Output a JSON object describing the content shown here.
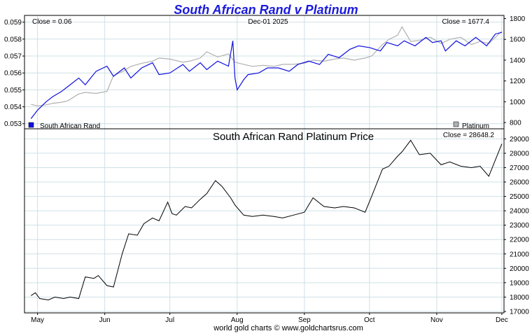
{
  "title": "South African Rand v Platinum",
  "footer": "world gold charts © www.goldchartsrus.com",
  "colors": {
    "title": "#1a1adc",
    "rand": "#1010e0",
    "platinum_top": "#b0b0b0",
    "price_line": "#000000",
    "grid": "#cfe0e6",
    "frame": "#000000"
  },
  "top_panel": {
    "close_left": "Close = 0.06",
    "date": "Dec-01  2025",
    "close_right": "Close = 1677.4",
    "legend_left": "South African Rand",
    "legend_right": "Platinum"
  },
  "bottom_panel": {
    "title": "South African Rand Platinum Price",
    "close": "Close = 28648.2"
  },
  "chart_data": [
    {
      "type": "line",
      "title": "South African Rand v Platinum",
      "x_ticks": [
        "May",
        "Jun",
        "Jul",
        "Aug",
        "Sep",
        "Oct",
        "Nov",
        "Dec"
      ],
      "y_left_ticks": [
        "0.053",
        "0.054",
        "0.055",
        "0.056",
        "0.057",
        "0.058",
        "0.059"
      ],
      "y_left_range": [
        0.0527,
        0.0594
      ],
      "y_right_ticks": [
        "800",
        "1000",
        "1200",
        "1400",
        "1600",
        "1800"
      ],
      "y_right_range": [
        740,
        1830
      ],
      "grid": true,
      "legend": [
        "South African Rand",
        "Platinum"
      ],
      "legend_placement": "bottom",
      "series": [
        {
          "name": "South African Rand",
          "axis": "left",
          "x": [
            "Apr-28",
            "May-01",
            "May-05",
            "May-08",
            "May-12",
            "May-15",
            "May-20",
            "May-23",
            "May-28",
            "Jun-02",
            "Jun-05",
            "Jun-10",
            "Jun-13",
            "Jun-18",
            "Jun-23",
            "Jun-26",
            "Jul-01",
            "Jul-07",
            "Jul-10",
            "Jul-15",
            "Jul-18",
            "Jul-23",
            "Jul-28",
            "Jul-30",
            "Jul-31",
            "Aug-01",
            "Aug-04",
            "Aug-06",
            "Aug-11",
            "Aug-15",
            "Aug-20",
            "Aug-25",
            "Aug-29",
            "Sep-03",
            "Sep-08",
            "Sep-12",
            "Sep-17",
            "Sep-22",
            "Sep-26",
            "Oct-01",
            "Oct-06",
            "Oct-09",
            "Oct-14",
            "Oct-17",
            "Oct-22",
            "Oct-27",
            "Oct-30",
            "Nov-03",
            "Nov-05",
            "Nov-10",
            "Nov-14",
            "Nov-19",
            "Nov-24",
            "Nov-28",
            "Dec-01"
          ],
          "y": [
            0.0533,
            0.0538,
            0.0543,
            0.0546,
            0.0549,
            0.0552,
            0.0557,
            0.0553,
            0.0561,
            0.0564,
            0.0558,
            0.0563,
            0.0557,
            0.0563,
            0.0566,
            0.0559,
            0.056,
            0.0565,
            0.0561,
            0.0566,
            0.0562,
            0.0567,
            0.0564,
            0.0579,
            0.0557,
            0.055,
            0.0556,
            0.0559,
            0.056,
            0.0563,
            0.0563,
            0.0561,
            0.0565,
            0.0567,
            0.0565,
            0.0571,
            0.0569,
            0.0574,
            0.0576,
            0.0575,
            0.0573,
            0.0578,
            0.0576,
            0.0579,
            0.0576,
            0.0581,
            0.0578,
            0.0579,
            0.0573,
            0.0579,
            0.0576,
            0.0581,
            0.0576,
            0.0583,
            0.0584
          ]
        },
        {
          "name": "Platinum",
          "axis": "right",
          "x": [
            "Apr-28",
            "May-01",
            "May-05",
            "May-08",
            "May-12",
            "May-15",
            "May-20",
            "May-23",
            "May-28",
            "Jun-02",
            "Jun-05",
            "Jun-10",
            "Jun-13",
            "Jun-18",
            "Jun-23",
            "Jun-26",
            "Jul-01",
            "Jul-07",
            "Jul-10",
            "Jul-15",
            "Jul-18",
            "Jul-23",
            "Jul-28",
            "Jul-31",
            "Aug-04",
            "Aug-08",
            "Aug-13",
            "Aug-18",
            "Aug-22",
            "Aug-27",
            "Sep-01",
            "Sep-05",
            "Sep-10",
            "Sep-15",
            "Sep-19",
            "Sep-24",
            "Sep-29",
            "Oct-02",
            "Oct-07",
            "Oct-10",
            "Oct-14",
            "Oct-16",
            "Oct-20",
            "Oct-24",
            "Oct-29",
            "Nov-03",
            "Nov-07",
            "Nov-12",
            "Nov-17",
            "Nov-21",
            "Nov-25",
            "Dec-01"
          ],
          "y": [
            975,
            960,
            970,
            985,
            995,
            1010,
            1075,
            1090,
            1080,
            1100,
            1250,
            1300,
            1340,
            1370,
            1390,
            1420,
            1410,
            1380,
            1390,
            1420,
            1480,
            1430,
            1460,
            1380,
            1360,
            1340,
            1350,
            1340,
            1360,
            1360,
            1370,
            1400,
            1390,
            1410,
            1420,
            1400,
            1420,
            1440,
            1550,
            1600,
            1640,
            1720,
            1580,
            1590,
            1620,
            1560,
            1600,
            1620,
            1550,
            1580,
            1560,
            1677.4
          ]
        }
      ]
    },
    {
      "type": "line",
      "title": "South African Rand Platinum Price",
      "x_ticks": [
        "May",
        "Jun",
        "Jul",
        "Aug",
        "Sep",
        "Oct",
        "Nov",
        "Dec"
      ],
      "y_ticks": [
        "17000",
        "18000",
        "19000",
        "20000",
        "21000",
        "22000",
        "23000",
        "24000",
        "25000",
        "26000",
        "27000",
        "28000",
        "29000"
      ],
      "y_range": [
        16900,
        29700
      ],
      "grid": true,
      "series": [
        {
          "name": "",
          "x": [
            "Apr-28",
            "Apr-30",
            "May-02",
            "May-06",
            "May-09",
            "May-13",
            "May-16",
            "May-20",
            "May-23",
            "May-27",
            "May-29",
            "Jun-02",
            "Jun-05",
            "Jun-09",
            "Jun-12",
            "Jun-16",
            "Jun-19",
            "Jun-23",
            "Jun-26",
            "Jun-30",
            "Jul-02",
            "Jul-04",
            "Jul-08",
            "Jul-11",
            "Jul-15",
            "Jul-18",
            "Jul-22",
            "Jul-25",
            "Jul-29",
            "Jul-31",
            "Aug-04",
            "Aug-08",
            "Aug-13",
            "Aug-18",
            "Aug-22",
            "Aug-27",
            "Sep-01",
            "Sep-05",
            "Sep-10",
            "Sep-15",
            "Sep-19",
            "Sep-24",
            "Sep-29",
            "Oct-02",
            "Oct-07",
            "Oct-10",
            "Oct-14",
            "Oct-16",
            "Oct-20",
            "Oct-24",
            "Oct-29",
            "Nov-03",
            "Nov-07",
            "Nov-12",
            "Nov-17",
            "Nov-21",
            "Nov-25",
            "Dec-01"
          ],
          "y": [
            18100,
            18300,
            17900,
            17800,
            18000,
            17900,
            18000,
            17900,
            19400,
            19300,
            19500,
            18800,
            18700,
            21000,
            22400,
            22300,
            23100,
            23500,
            23300,
            24600,
            23800,
            23700,
            24300,
            24200,
            24800,
            25200,
            26100,
            25700,
            24900,
            24400,
            23700,
            23600,
            23700,
            23600,
            23500,
            23700,
            23900,
            24900,
            24300,
            24200,
            24300,
            24200,
            23900,
            25000,
            26900,
            27100,
            27800,
            28100,
            28900,
            27900,
            28000,
            27200,
            27400,
            27100,
            27000,
            27100,
            26400,
            28648.2
          ]
        }
      ]
    }
  ]
}
